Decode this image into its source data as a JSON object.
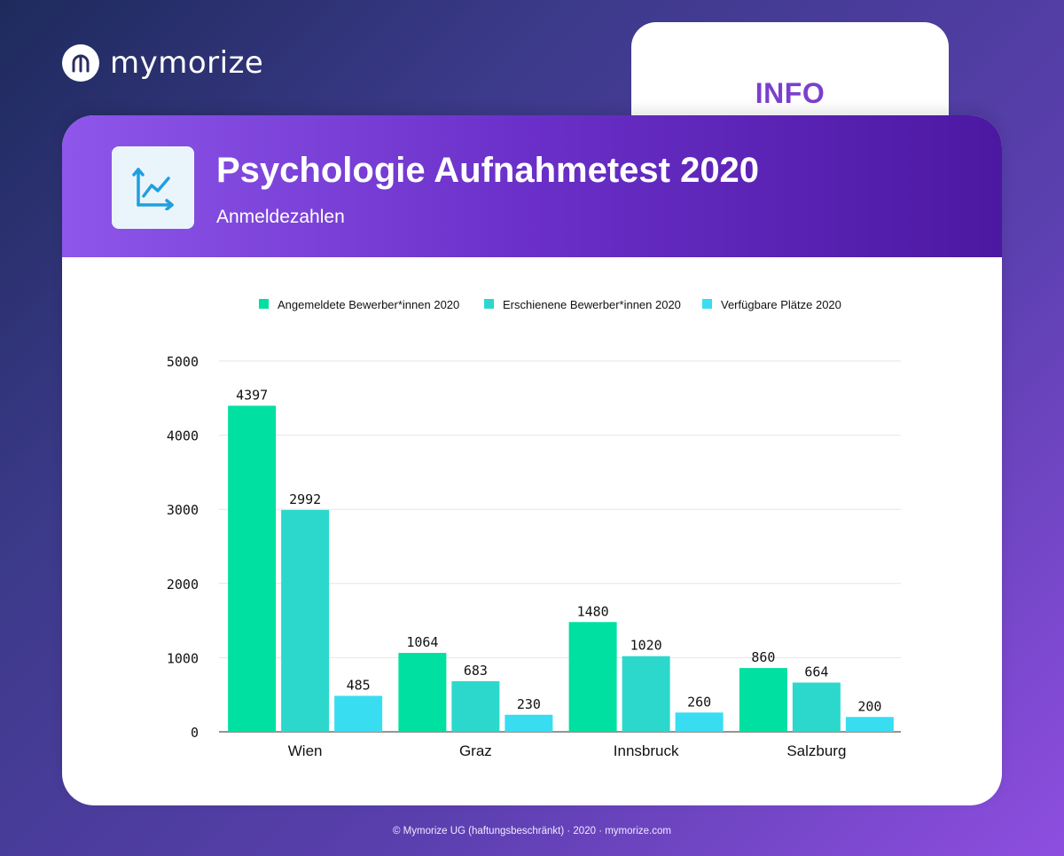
{
  "brand": {
    "name": "mymorize"
  },
  "info_tab": {
    "label": "INFO"
  },
  "card": {
    "title": "Psychologie Aufnahmetest 2020",
    "subtitle": "Anmeldezahlen",
    "icon": "line-chart-icon"
  },
  "colors": {
    "series1": "#00e0a0",
    "series2": "#2cd8cc",
    "series3": "#38ddf2",
    "header_start": "#8e56ea",
    "header_end": "#4c18a2",
    "info_text": "#7a3fd0"
  },
  "chart_data": {
    "type": "bar",
    "categories": [
      "Wien",
      "Graz",
      "Innsbruck",
      "Salzburg"
    ],
    "series": [
      {
        "name": "Angemeldete Bewerber*innen 2020",
        "values": [
          4397,
          1064,
          1480,
          860
        ]
      },
      {
        "name": "Erschienene Bewerber*innen 2020",
        "values": [
          2992,
          683,
          1020,
          664
        ]
      },
      {
        "name": "Verfügbare Plätze 2020",
        "values": [
          485,
          230,
          260,
          200
        ]
      }
    ],
    "ylim": [
      0,
      5000
    ],
    "yticks": [
      0,
      1000,
      2000,
      3000,
      4000,
      5000
    ],
    "grid": true,
    "legend": "top"
  },
  "footer": {
    "text": "© Mymorize UG (haftungsbeschränkt) · 2020 · mymorize.com"
  }
}
